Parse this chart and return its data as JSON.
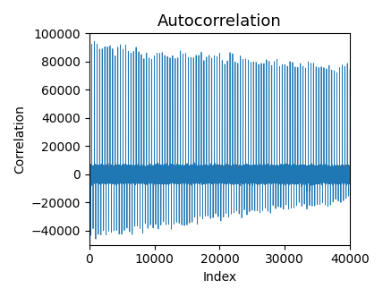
{
  "title": "Autocorrelation",
  "xlabel": "Index",
  "ylabel": "Correlation",
  "xlim": [
    0,
    40000
  ],
  "ylim": [
    -50000,
    100000
  ],
  "line_color": "#1f77b4",
  "linewidth": 0.6,
  "n_points": 40001,
  "yticks": [
    -40000,
    -20000,
    0,
    20000,
    40000,
    60000,
    80000,
    100000
  ],
  "xticks": [
    0,
    10000,
    20000,
    30000,
    40000
  ],
  "figsize": [
    4.28,
    3.32
  ],
  "dpi": 100,
  "bit_period": 400,
  "title_fontsize": 13
}
